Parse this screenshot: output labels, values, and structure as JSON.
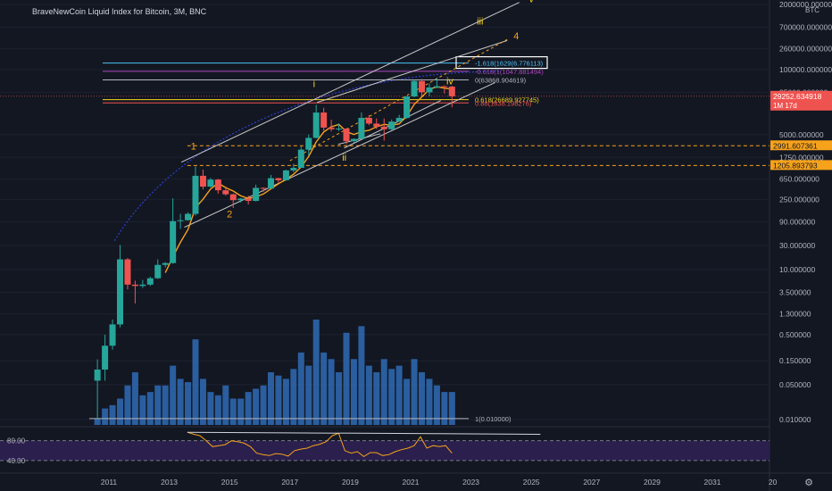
{
  "header": {
    "title": "BraveNewCoin Liquid Index for Bitcoin, 3M, BNC"
  },
  "colors": {
    "background": "#131722",
    "up": "#26a69a",
    "down": "#ef5350",
    "volume": "#2f6bb5",
    "ma": "#f7a21b",
    "rsi_fill": "#2a1f4d",
    "grid": "#1e2230",
    "channel": "#c8c8c8",
    "blue_arc": "#2c3fd1"
  },
  "chart_data": {
    "type": "candlestick",
    "title": "BraveNewCoin Liquid Index for Bitcoin, 3M, BNC",
    "y_scale": "log",
    "y_unit": "BTC",
    "y_ticks": [
      {
        "value": 0.01,
        "label": "0.010000"
      },
      {
        "value": 0.05,
        "label": "0.050000"
      },
      {
        "value": 0.15,
        "label": "0.150000"
      },
      {
        "value": 0.5,
        "label": "0.500000"
      },
      {
        "value": 1.3,
        "label": "1.300000"
      },
      {
        "value": 3.5,
        "label": "3.500000"
      },
      {
        "value": 10,
        "label": "10.000000"
      },
      {
        "value": 30,
        "label": "30.000000"
      },
      {
        "value": 90,
        "label": "90.000000"
      },
      {
        "value": 250,
        "label": "250.000000"
      },
      {
        "value": 650,
        "label": "650.000000"
      },
      {
        "value": 1750,
        "label": "1750.000000"
      },
      {
        "value": 5000,
        "label": "5000.000000"
      },
      {
        "value": 35000,
        "label": "35000.000000"
      },
      {
        "value": 100000,
        "label": "100000.000000"
      },
      {
        "value": 260000,
        "label": "260000.000000"
      },
      {
        "value": 700000,
        "label": "700000.000000"
      },
      {
        "value": 2000000,
        "label": "2000000.000000"
      }
    ],
    "x_ticks": [
      {
        "year": 2011,
        "label": "2011"
      },
      {
        "year": 2013,
        "label": "2013"
      },
      {
        "year": 2015,
        "label": "2015"
      },
      {
        "year": 2017,
        "label": "2017"
      },
      {
        "year": 2019,
        "label": "2019"
      },
      {
        "year": 2021,
        "label": "2021"
      },
      {
        "year": 2023,
        "label": "2023"
      },
      {
        "year": 2025,
        "label": "2025"
      },
      {
        "year": 2027,
        "label": "2027"
      },
      {
        "year": 2029,
        "label": "2029"
      },
      {
        "year": 2031,
        "label": "2031"
      },
      {
        "year": 2033,
        "label": "20"
      }
    ],
    "price_tags": [
      {
        "value": 29252.634918,
        "label": "29252.634918",
        "sublabel": "1M 17d",
        "color": "#ef5350"
      },
      {
        "value": 2991.607361,
        "label": "2991.607361",
        "color": "#f7a21b"
      },
      {
        "value": 1205.893793,
        "label": "1205.893793",
        "color": "#f7a21b"
      }
    ],
    "levels": [
      {
        "label": "-1.618(1629(6.776113)",
        "value": 135000,
        "color": "#4fc3f7",
        "boxed": true
      },
      {
        "label": "-0.618(1(1047.881494)",
        "value": 92000,
        "color": "#ab47bc"
      },
      {
        "label": "0(63868.904619)",
        "value": 62000,
        "color": "#b2b5be"
      },
      {
        "label": "0.618(26689.927745)",
        "value": 25000,
        "color": "#f7d51b"
      },
      {
        "label": "0.88(1838.198276)",
        "value": 21500,
        "color": "#ef5350"
      },
      {
        "label": "1(0.010000)",
        "value": 0.0105,
        "color": "#b2b5be"
      }
    ],
    "wave_labels": [
      {
        "label": "1",
        "year": 2013.8,
        "value": 2500,
        "color": "#f7a21b"
      },
      {
        "label": "2",
        "year": 2015.0,
        "value": 110,
        "color": "#f7a21b"
      },
      {
        "label": "i",
        "year": 2017.8,
        "value": 45000,
        "color": "#f7d51b"
      },
      {
        "label": "ii",
        "year": 2018.8,
        "value": 1500,
        "color": "#f7d51b"
      },
      {
        "label": "iii",
        "year": 2023.3,
        "value": 800000,
        "color": "#f7d51b"
      },
      {
        "label": "iv",
        "year": 2022.3,
        "value": 50000,
        "color": "#f7d51b"
      },
      {
        "label": "4",
        "year": 2024.5,
        "value": 400000,
        "color": "#f7a21b"
      },
      {
        "label": "v",
        "year": 2025.0,
        "value": 2200000,
        "color": "#f7d51b"
      }
    ],
    "candles": [
      {
        "t": 2010.62,
        "o": 0.06,
        "h": 0.16,
        "l": 0.01,
        "c": 0.1
      },
      {
        "t": 2010.87,
        "o": 0.1,
        "h": 0.5,
        "l": 0.06,
        "c": 0.3
      },
      {
        "t": 2011.12,
        "o": 0.3,
        "h": 1.0,
        "l": 0.25,
        "c": 0.8
      },
      {
        "t": 2011.37,
        "o": 0.8,
        "h": 31,
        "l": 0.7,
        "c": 16
      },
      {
        "t": 2011.62,
        "o": 16,
        "h": 17,
        "l": 4,
        "c": 5
      },
      {
        "t": 2011.87,
        "o": 5,
        "h": 6,
        "l": 2.1,
        "c": 4.7
      },
      {
        "t": 2012.12,
        "o": 4.7,
        "h": 6.2,
        "l": 4.3,
        "c": 5
      },
      {
        "t": 2012.37,
        "o": 5,
        "h": 7.2,
        "l": 4.7,
        "c": 6.7
      },
      {
        "t": 2012.62,
        "o": 6.7,
        "h": 16,
        "l": 6.5,
        "c": 12.4
      },
      {
        "t": 2012.87,
        "o": 12.4,
        "h": 14,
        "l": 11,
        "c": 13.5
      },
      {
        "t": 2013.12,
        "o": 13.5,
        "h": 266,
        "l": 13,
        "c": 93
      },
      {
        "t": 2013.37,
        "o": 93,
        "h": 130,
        "l": 65,
        "c": 97
      },
      {
        "t": 2013.62,
        "o": 97,
        "h": 140,
        "l": 95,
        "c": 130
      },
      {
        "t": 2013.87,
        "o": 130,
        "h": 1150,
        "l": 120,
        "c": 750
      },
      {
        "t": 2014.12,
        "o": 750,
        "h": 1000,
        "l": 400,
        "c": 455
      },
      {
        "t": 2014.37,
        "o": 455,
        "h": 680,
        "l": 440,
        "c": 630
      },
      {
        "t": 2014.62,
        "o": 630,
        "h": 650,
        "l": 330,
        "c": 385
      },
      {
        "t": 2014.87,
        "o": 385,
        "h": 460,
        "l": 300,
        "c": 320
      },
      {
        "t": 2015.12,
        "o": 320,
        "h": 330,
        "l": 170,
        "c": 244
      },
      {
        "t": 2015.37,
        "o": 244,
        "h": 270,
        "l": 220,
        "c": 263
      },
      {
        "t": 2015.62,
        "o": 263,
        "h": 300,
        "l": 200,
        "c": 236
      },
      {
        "t": 2015.87,
        "o": 236,
        "h": 500,
        "l": 230,
        "c": 430
      },
      {
        "t": 2016.12,
        "o": 430,
        "h": 440,
        "l": 360,
        "c": 416
      },
      {
        "t": 2016.37,
        "o": 416,
        "h": 780,
        "l": 415,
        "c": 672
      },
      {
        "t": 2016.62,
        "o": 672,
        "h": 680,
        "l": 540,
        "c": 610
      },
      {
        "t": 2016.87,
        "o": 610,
        "h": 1000,
        "l": 600,
        "c": 960
      },
      {
        "t": 2017.12,
        "o": 960,
        "h": 1300,
        "l": 880,
        "c": 1080
      },
      {
        "t": 2017.37,
        "o": 1080,
        "h": 2900,
        "l": 1080,
        "c": 2500
      },
      {
        "t": 2017.62,
        "o": 2500,
        "h": 5000,
        "l": 1900,
        "c": 4300
      },
      {
        "t": 2017.87,
        "o": 4300,
        "h": 19700,
        "l": 4200,
        "c": 13800
      },
      {
        "t": 2018.12,
        "o": 13800,
        "h": 17200,
        "l": 6000,
        "c": 6900
      },
      {
        "t": 2018.37,
        "o": 6900,
        "h": 9900,
        "l": 5800,
        "c": 6400
      },
      {
        "t": 2018.62,
        "o": 6400,
        "h": 8400,
        "l": 5900,
        "c": 6600
      },
      {
        "t": 2018.87,
        "o": 6600,
        "h": 6700,
        "l": 3200,
        "c": 3700
      },
      {
        "t": 2019.12,
        "o": 3700,
        "h": 4200,
        "l": 3400,
        "c": 4100
      },
      {
        "t": 2019.37,
        "o": 4100,
        "h": 13800,
        "l": 4000,
        "c": 10800
      },
      {
        "t": 2019.62,
        "o": 10800,
        "h": 12300,
        "l": 7700,
        "c": 8300
      },
      {
        "t": 2019.87,
        "o": 8300,
        "h": 10500,
        "l": 6500,
        "c": 7200
      },
      {
        "t": 2020.12,
        "o": 7200,
        "h": 10500,
        "l": 3800,
        "c": 6400
      },
      {
        "t": 2020.37,
        "o": 6400,
        "h": 10000,
        "l": 6200,
        "c": 9100
      },
      {
        "t": 2020.62,
        "o": 9100,
        "h": 12400,
        "l": 9000,
        "c": 10800
      },
      {
        "t": 2020.87,
        "o": 10800,
        "h": 29000,
        "l": 10400,
        "c": 29000
      },
      {
        "t": 2021.12,
        "o": 29000,
        "h": 61800,
        "l": 28000,
        "c": 58800
      },
      {
        "t": 2021.37,
        "o": 58800,
        "h": 64800,
        "l": 28800,
        "c": 35000
      },
      {
        "t": 2021.62,
        "o": 35000,
        "h": 52900,
        "l": 29300,
        "c": 43800
      },
      {
        "t": 2021.87,
        "o": 43800,
        "h": 69000,
        "l": 42000,
        "c": 46300
      },
      {
        "t": 2022.12,
        "o": 46300,
        "h": 48200,
        "l": 33000,
        "c": 45500
      },
      {
        "t": 2022.37,
        "o": 45500,
        "h": 47400,
        "l": 17600,
        "c": 29252
      }
    ],
    "volume": [
      2,
      5,
      6,
      8,
      12,
      16,
      9,
      10,
      12,
      12,
      18,
      14,
      13,
      26,
      14,
      10,
      9,
      12,
      8,
      8,
      10,
      11,
      12,
      16,
      15,
      14,
      17,
      22,
      18,
      32,
      22,
      20,
      16,
      28,
      20,
      30,
      18,
      16,
      20,
      17,
      18,
      14,
      20,
      16,
      14,
      12,
      10,
      10
    ],
    "rsi": {
      "upper": 80,
      "lower": 40,
      "labels": [
        "80.00",
        "40.00"
      ],
      "values": [
        97,
        93,
        90,
        80,
        68,
        70,
        72,
        80,
        78,
        75,
        68,
        55,
        52,
        50,
        54,
        53,
        49,
        60,
        63,
        65,
        70,
        73,
        78,
        90,
        95,
        60,
        55,
        58,
        48,
        56,
        56,
        50,
        52,
        58,
        62,
        65,
        70,
        88,
        65,
        70,
        68,
        70,
        55
      ]
    }
  }
}
